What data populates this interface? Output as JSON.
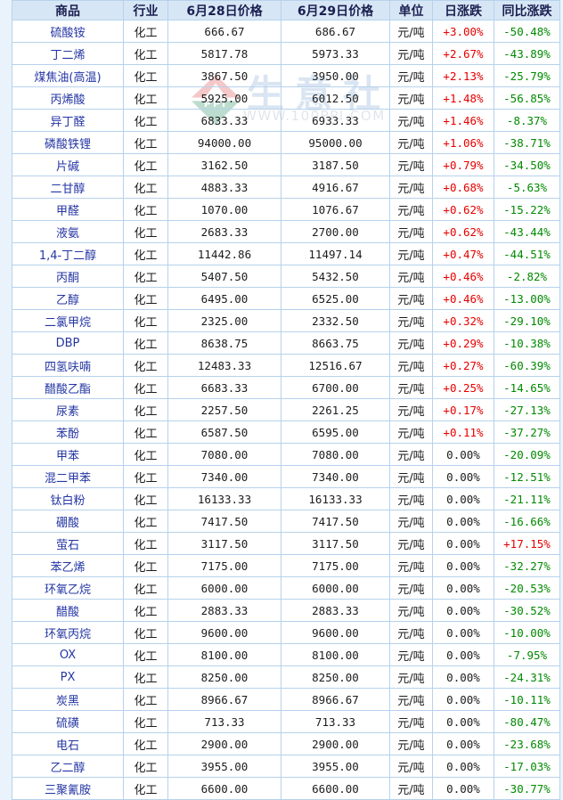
{
  "colors": {
    "page_bg": "#eaf3fb",
    "table_bg": "#ffffff",
    "border": "#b6d2ec",
    "header_bg": "#d7e6f5",
    "header_text": "#1a2050",
    "link": "#2436a4",
    "text": "#1c1c1c",
    "up": "#e60000",
    "down": "#008a00"
  },
  "watermark": {
    "brand": "生意社",
    "url": "WWW.100PPI.COM",
    "logo_text": "PPI"
  },
  "table": {
    "columns": [
      "商品",
      "行业",
      "6月28日价格",
      "6月29日价格",
      "单位",
      "日涨跌",
      "同比涨跌"
    ],
    "rows": [
      {
        "name": "硫酸铵",
        "industry": "化工",
        "p1": "666.67",
        "p2": "686.67",
        "unit": "元/吨",
        "day": "+3.00%",
        "yoy": "-50.48%"
      },
      {
        "name": "丁二烯",
        "industry": "化工",
        "p1": "5817.78",
        "p2": "5973.33",
        "unit": "元/吨",
        "day": "+2.67%",
        "yoy": "-43.89%"
      },
      {
        "name": "煤焦油(高温)",
        "industry": "化工",
        "p1": "3867.50",
        "p2": "3950.00",
        "unit": "元/吨",
        "day": "+2.13%",
        "yoy": "-25.79%"
      },
      {
        "name": "丙烯酸",
        "industry": "化工",
        "p1": "5925.00",
        "p2": "6012.50",
        "unit": "元/吨",
        "day": "+1.48%",
        "yoy": "-56.85%"
      },
      {
        "name": "异丁醛",
        "industry": "化工",
        "p1": "6833.33",
        "p2": "6933.33",
        "unit": "元/吨",
        "day": "+1.46%",
        "yoy": "-8.37%"
      },
      {
        "name": "磷酸铁锂",
        "industry": "化工",
        "p1": "94000.00",
        "p2": "95000.00",
        "unit": "元/吨",
        "day": "+1.06%",
        "yoy": "-38.71%"
      },
      {
        "name": "片碱",
        "industry": "化工",
        "p1": "3162.50",
        "p2": "3187.50",
        "unit": "元/吨",
        "day": "+0.79%",
        "yoy": "-34.50%"
      },
      {
        "name": "二甘醇",
        "industry": "化工",
        "p1": "4883.33",
        "p2": "4916.67",
        "unit": "元/吨",
        "day": "+0.68%",
        "yoy": "-5.63%"
      },
      {
        "name": "甲醛",
        "industry": "化工",
        "p1": "1070.00",
        "p2": "1076.67",
        "unit": "元/吨",
        "day": "+0.62%",
        "yoy": "-15.22%"
      },
      {
        "name": "液氨",
        "industry": "化工",
        "p1": "2683.33",
        "p2": "2700.00",
        "unit": "元/吨",
        "day": "+0.62%",
        "yoy": "-43.44%"
      },
      {
        "name": "1,4-丁二醇",
        "industry": "化工",
        "p1": "11442.86",
        "p2": "11497.14",
        "unit": "元/吨",
        "day": "+0.47%",
        "yoy": "-44.51%"
      },
      {
        "name": "丙酮",
        "industry": "化工",
        "p1": "5407.50",
        "p2": "5432.50",
        "unit": "元/吨",
        "day": "+0.46%",
        "yoy": "-2.82%"
      },
      {
        "name": "乙醇",
        "industry": "化工",
        "p1": "6495.00",
        "p2": "6525.00",
        "unit": "元/吨",
        "day": "+0.46%",
        "yoy": "-13.00%"
      },
      {
        "name": "二氯甲烷",
        "industry": "化工",
        "p1": "2325.00",
        "p2": "2332.50",
        "unit": "元/吨",
        "day": "+0.32%",
        "yoy": "-29.10%"
      },
      {
        "name": "DBP",
        "industry": "化工",
        "p1": "8638.75",
        "p2": "8663.75",
        "unit": "元/吨",
        "day": "+0.29%",
        "yoy": "-10.38%"
      },
      {
        "name": "四氢呋喃",
        "industry": "化工",
        "p1": "12483.33",
        "p2": "12516.67",
        "unit": "元/吨",
        "day": "+0.27%",
        "yoy": "-60.39%"
      },
      {
        "name": "醋酸乙酯",
        "industry": "化工",
        "p1": "6683.33",
        "p2": "6700.00",
        "unit": "元/吨",
        "day": "+0.25%",
        "yoy": "-14.65%"
      },
      {
        "name": "尿素",
        "industry": "化工",
        "p1": "2257.50",
        "p2": "2261.25",
        "unit": "元/吨",
        "day": "+0.17%",
        "yoy": "-27.13%"
      },
      {
        "name": "苯酚",
        "industry": "化工",
        "p1": "6587.50",
        "p2": "6595.00",
        "unit": "元/吨",
        "day": "+0.11%",
        "yoy": "-37.27%"
      },
      {
        "name": "甲苯",
        "industry": "化工",
        "p1": "7080.00",
        "p2": "7080.00",
        "unit": "元/吨",
        "day": "0.00%",
        "yoy": "-20.09%"
      },
      {
        "name": "混二甲苯",
        "industry": "化工",
        "p1": "7340.00",
        "p2": "7340.00",
        "unit": "元/吨",
        "day": "0.00%",
        "yoy": "-12.51%"
      },
      {
        "name": "钛白粉",
        "industry": "化工",
        "p1": "16133.33",
        "p2": "16133.33",
        "unit": "元/吨",
        "day": "0.00%",
        "yoy": "-21.11%"
      },
      {
        "name": "硼酸",
        "industry": "化工",
        "p1": "7417.50",
        "p2": "7417.50",
        "unit": "元/吨",
        "day": "0.00%",
        "yoy": "-16.66%"
      },
      {
        "name": "萤石",
        "industry": "化工",
        "p1": "3117.50",
        "p2": "3117.50",
        "unit": "元/吨",
        "day": "0.00%",
        "yoy": "+17.15%"
      },
      {
        "name": "苯乙烯",
        "industry": "化工",
        "p1": "7175.00",
        "p2": "7175.00",
        "unit": "元/吨",
        "day": "0.00%",
        "yoy": "-32.27%"
      },
      {
        "name": "环氧乙烷",
        "industry": "化工",
        "p1": "6000.00",
        "p2": "6000.00",
        "unit": "元/吨",
        "day": "0.00%",
        "yoy": "-20.53%"
      },
      {
        "name": "醋酸",
        "industry": "化工",
        "p1": "2883.33",
        "p2": "2883.33",
        "unit": "元/吨",
        "day": "0.00%",
        "yoy": "-30.52%"
      },
      {
        "name": "环氧丙烷",
        "industry": "化工",
        "p1": "9600.00",
        "p2": "9600.00",
        "unit": "元/吨",
        "day": "0.00%",
        "yoy": "-10.00%"
      },
      {
        "name": "OX",
        "industry": "化工",
        "p1": "8100.00",
        "p2": "8100.00",
        "unit": "元/吨",
        "day": "0.00%",
        "yoy": "-7.95%"
      },
      {
        "name": "PX",
        "industry": "化工",
        "p1": "8250.00",
        "p2": "8250.00",
        "unit": "元/吨",
        "day": "0.00%",
        "yoy": "-24.31%"
      },
      {
        "name": "炭黑",
        "industry": "化工",
        "p1": "8966.67",
        "p2": "8966.67",
        "unit": "元/吨",
        "day": "0.00%",
        "yoy": "-10.11%"
      },
      {
        "name": "硫磺",
        "industry": "化工",
        "p1": "713.33",
        "p2": "713.33",
        "unit": "元/吨",
        "day": "0.00%",
        "yoy": "-80.47%"
      },
      {
        "name": "电石",
        "industry": "化工",
        "p1": "2900.00",
        "p2": "2900.00",
        "unit": "元/吨",
        "day": "0.00%",
        "yoy": "-23.68%"
      },
      {
        "name": "乙二醇",
        "industry": "化工",
        "p1": "3955.00",
        "p2": "3955.00",
        "unit": "元/吨",
        "day": "0.00%",
        "yoy": "-17.03%"
      },
      {
        "name": "三聚氰胺",
        "industry": "化工",
        "p1": "6600.00",
        "p2": "6600.00",
        "unit": "元/吨",
        "day": "0.00%",
        "yoy": "-30.77%"
      }
    ]
  }
}
